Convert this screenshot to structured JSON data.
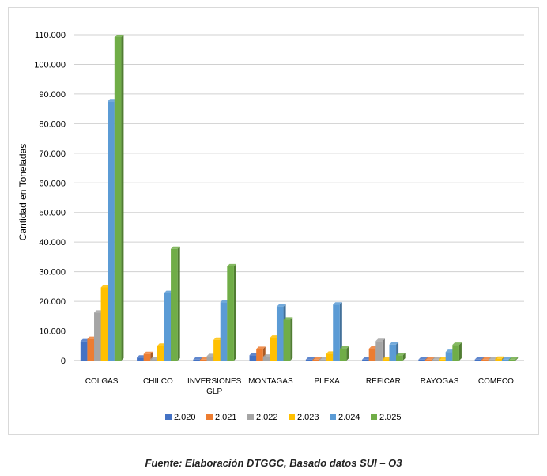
{
  "chart_data": {
    "type": "bar",
    "ylabel": "Cantidad en Toneladas",
    "ylim": [
      0,
      110000
    ],
    "yticks": [
      "0",
      "10.000",
      "20.000",
      "30.000",
      "40.000",
      "50.000",
      "60.000",
      "70.000",
      "80.000",
      "90.000",
      "100.000",
      "110.000"
    ],
    "categories": [
      "COLGAS",
      "CHILCO",
      "INVERSIONES GLP",
      "MONTAGAS",
      "PLEXA",
      "REFICAR",
      "RAYOGAS",
      "COMECO"
    ],
    "grid": true,
    "legend": "bottom",
    "series": [
      {
        "name": "2.020",
        "color": "#4472C4",
        "values": [
          6500,
          1000,
          100,
          1800,
          100,
          100,
          100,
          100
        ]
      },
      {
        "name": "2.021",
        "color": "#ED7D31",
        "values": [
          7300,
          2200,
          100,
          3900,
          100,
          4000,
          100,
          100
        ]
      },
      {
        "name": "2.022",
        "color": "#A5A5A5",
        "values": [
          16200,
          500,
          1500,
          1300,
          200,
          6600,
          100,
          100
        ]
      },
      {
        "name": "2.023",
        "color": "#FFC000",
        "values": [
          24700,
          5000,
          7000,
          7700,
          2300,
          500,
          100,
          600
        ]
      },
      {
        "name": "2.024",
        "color": "#5B9BD5",
        "values": [
          87500,
          22800,
          19700,
          18200,
          18900,
          5400,
          2900,
          300
        ]
      },
      {
        "name": "2.025",
        "color": "#70AD47",
        "values": [
          109200,
          37700,
          31800,
          13800,
          4000,
          1800,
          5300,
          200
        ]
      }
    ]
  },
  "caption": "Fuente: Elaboración DTGGC, Basado datos SUI – O3"
}
